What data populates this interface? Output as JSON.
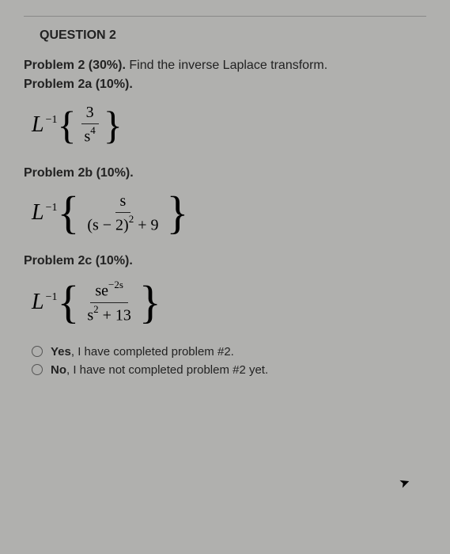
{
  "question": {
    "header": "QUESTION 2"
  },
  "problem": {
    "title_prefix": "Problem 2 (30%).",
    "title_rest": " Find the inverse Laplace transform.",
    "sub_a": "Problem 2a (10%).",
    "sub_b": "Problem 2b (10%).",
    "sub_c": "Problem 2c (10%)."
  },
  "formula_a": {
    "operator": "L",
    "exponent": "−1",
    "numerator": "3",
    "denominator_base": "s",
    "denominator_exp": "4"
  },
  "formula_b": {
    "operator": "L",
    "exponent": "−1",
    "numerator": "s",
    "denom_left": "(s − 2)",
    "denom_exp": "2",
    "denom_right": " + 9"
  },
  "formula_c": {
    "operator": "L",
    "exponent": "−1",
    "num_left": "se",
    "num_exp": "−2s",
    "denom_left": "s",
    "denom_exp": "2",
    "denom_right": " + 13"
  },
  "options": {
    "yes_bold": "Yes",
    "yes_rest": ", I have completed problem #2.",
    "no_bold": "No",
    "no_rest": ", I have not completed problem #2 yet."
  },
  "colors": {
    "background": "#b0b0ae",
    "text": "#222222",
    "border": "#555555"
  }
}
